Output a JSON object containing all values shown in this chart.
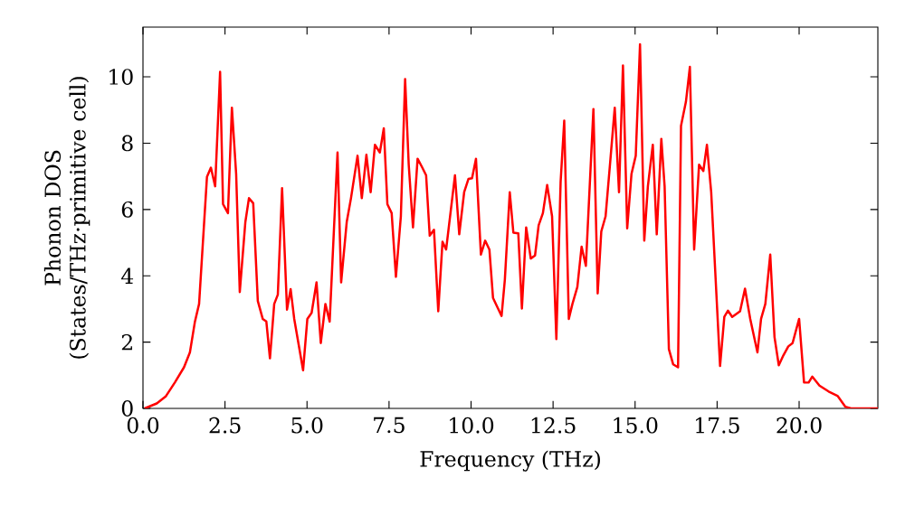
{
  "chart_data": {
    "type": "line",
    "xlabel": "Frequency (THz)",
    "ylabel": "Phonon DOS (States/THz·primitive cell)",
    "xlim": [
      0,
      22.4
    ],
    "ylim": [
      0,
      11.5
    ],
    "xticks": [
      {
        "value": 0,
        "label": "0.0"
      },
      {
        "value": 2.5,
        "label": "2.5"
      },
      {
        "value": 5,
        "label": "5.0"
      },
      {
        "value": 7.5,
        "label": "7.5"
      },
      {
        "value": 10,
        "label": "10.0"
      },
      {
        "value": 12.5,
        "label": "12.5"
      },
      {
        "value": 15,
        "label": "15.0"
      },
      {
        "value": 17.5,
        "label": "17.5"
      },
      {
        "value": 20,
        "label": "20.0"
      }
    ],
    "yticks": [
      0,
      2,
      4,
      6,
      8,
      10
    ],
    "grid": false,
    "series": [
      {
        "color": "#ff0000",
        "line_style": "solid",
        "x": [
          0.05,
          0.42,
          0.7,
          0.97,
          1.25,
          1.43,
          1.58,
          1.71,
          1.95,
          2.07,
          2.2,
          2.35,
          2.44,
          2.59,
          2.71,
          2.84,
          2.95,
          3.12,
          3.23,
          3.36,
          3.5,
          3.65,
          3.76,
          3.87,
          4.0,
          4.11,
          4.24,
          4.39,
          4.5,
          4.61,
          4.88,
          5.01,
          5.14,
          5.29,
          5.42,
          5.56,
          5.69,
          5.93,
          6.04,
          6.21,
          6.34,
          6.54,
          6.67,
          6.81,
          6.94,
          7.07,
          7.22,
          7.34,
          7.45,
          7.58,
          7.71,
          7.86,
          7.99,
          8.1,
          8.23,
          8.37,
          8.5,
          8.63,
          8.74,
          8.87,
          9.0,
          9.13,
          9.24,
          9.51,
          9.64,
          9.79,
          9.92,
          10.03,
          10.15,
          10.3,
          10.43,
          10.56,
          10.67,
          10.8,
          10.93,
          11.03,
          11.18,
          11.29,
          11.44,
          11.55,
          11.68,
          11.82,
          11.95,
          12.06,
          12.19,
          12.32,
          12.47,
          12.6,
          12.73,
          12.84,
          12.98,
          13.09,
          13.24,
          13.37,
          13.5,
          13.73,
          13.86,
          13.97,
          14.1,
          14.25,
          14.38,
          14.51,
          14.63,
          14.76,
          14.89,
          15.02,
          15.15,
          15.28,
          15.39,
          15.54,
          15.66,
          15.8,
          15.9,
          16.03,
          16.16,
          16.31,
          16.4,
          16.55,
          16.67,
          16.8,
          16.95,
          17.08,
          17.19,
          17.32,
          17.59,
          17.72,
          17.83,
          17.96,
          18.2,
          18.35,
          18.51,
          18.73,
          18.84,
          18.97,
          19.12,
          19.25,
          19.38,
          19.52,
          19.67,
          19.8,
          20.0,
          20.15,
          20.29,
          20.4,
          20.62,
          20.9,
          21.17,
          21.41,
          21.58,
          22.4
        ],
        "values": [
          0,
          0.15,
          0.37,
          0.78,
          1.24,
          1.69,
          2.6,
          3.15,
          6.98,
          7.26,
          6.7,
          10.15,
          6.16,
          5.89,
          9.07,
          7.07,
          3.51,
          5.62,
          6.34,
          6.19,
          3.24,
          2.7,
          2.62,
          1.51,
          3.15,
          3.43,
          6.64,
          2.98,
          3.6,
          2.7,
          1.15,
          2.7,
          2.88,
          3.8,
          1.97,
          3.15,
          2.62,
          7.72,
          3.8,
          5.62,
          6.34,
          7.62,
          6.34,
          7.65,
          6.52,
          7.95,
          7.72,
          8.45,
          6.16,
          5.89,
          3.97,
          5.79,
          9.93,
          7.35,
          5.46,
          7.53,
          7.29,
          7.03,
          5.21,
          5.39,
          2.93,
          5.03,
          4.79,
          7.03,
          5.25,
          6.52,
          6.92,
          6.94,
          7.53,
          4.64,
          5.06,
          4.79,
          3.33,
          3.06,
          2.79,
          3.88,
          6.52,
          5.3,
          5.28,
          3.01,
          5.46,
          4.52,
          4.61,
          5.52,
          5.89,
          6.74,
          5.79,
          2.09,
          6.83,
          8.68,
          2.7,
          3.15,
          3.66,
          4.88,
          4.3,
          9.03,
          3.47,
          5.34,
          5.79,
          7.53,
          9.07,
          6.52,
          10.34,
          5.43,
          7.07,
          7.62,
          10.98,
          5.06,
          6.7,
          7.95,
          5.25,
          8.13,
          6.7,
          1.79,
          1.33,
          1.24,
          8.52,
          9.25,
          10.3,
          4.79,
          7.35,
          7.16,
          7.95,
          6.52,
          1.28,
          2.76,
          2.95,
          2.76,
          2.93,
          3.61,
          2.7,
          1.69,
          2.7,
          3.15,
          4.64,
          2.15,
          1.3,
          1.6,
          1.87,
          1.97,
          2.7,
          0.78,
          0.78,
          0.96,
          0.69,
          0.51,
          0.38,
          0.05,
          0,
          0
        ]
      }
    ]
  }
}
